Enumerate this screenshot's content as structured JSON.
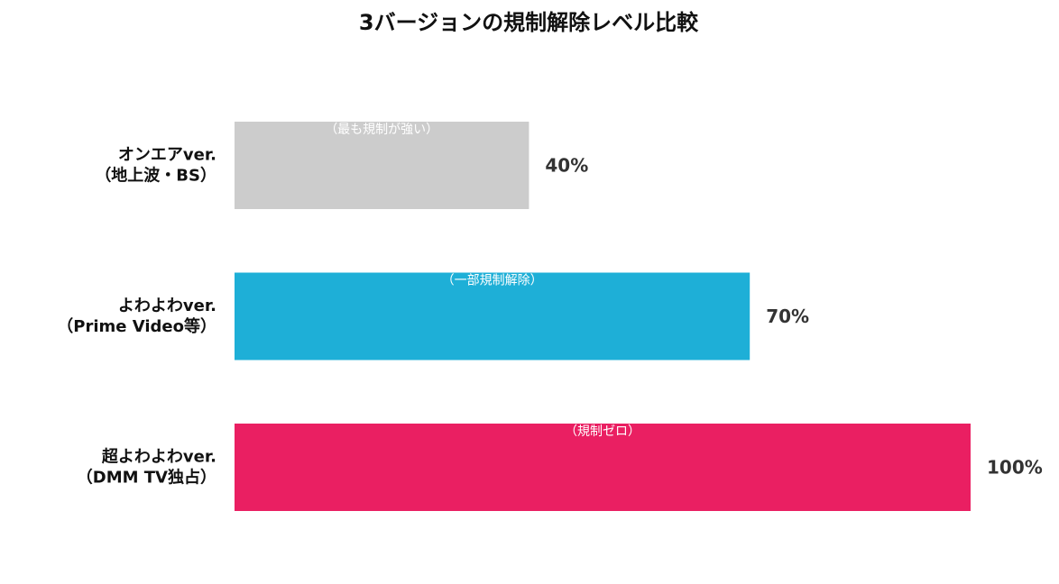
{
  "chart_data": {
    "type": "bar",
    "orientation": "horizontal",
    "title": "3バージョンの規制解除レベル比較",
    "xlabel": "",
    "ylabel": "",
    "xlim": [
      0,
      100
    ],
    "grid": false,
    "legend": "none",
    "categories": [
      [
        "オンエアver.",
        "（地上波・BS）"
      ],
      [
        "よわよわver.",
        "（Prime Video等）"
      ],
      [
        "超よわよわver.",
        "（DMM TV独占）"
      ]
    ],
    "values": [
      40,
      70,
      100
    ],
    "value_labels": [
      "40%",
      "70%",
      "100%"
    ],
    "annotations": [
      "（最も規制が強い）",
      "（一部規制解除）",
      "（規制ゼロ）"
    ],
    "colors": [
      "#cccccc",
      "#1eafd7",
      "#ea1f62"
    ]
  }
}
